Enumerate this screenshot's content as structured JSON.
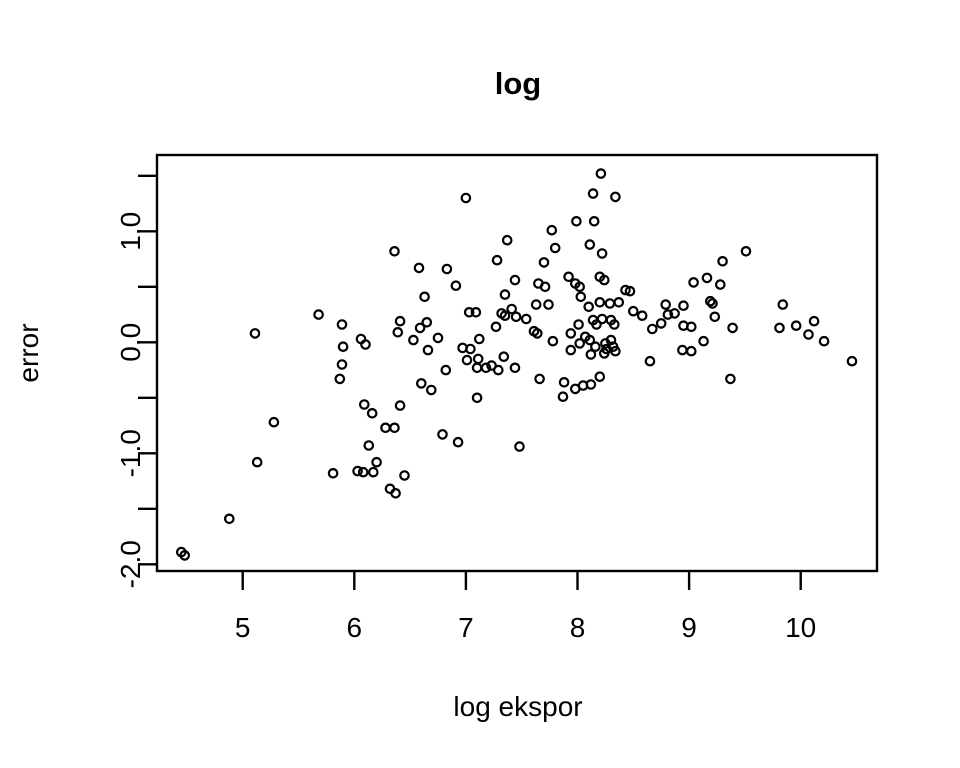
{
  "title": "log",
  "plot": {
    "background": "#ffffff",
    "stroke_color": "#000000",
    "marker": "open-circle"
  },
  "x_axis": {
    "label": "log ekspor",
    "ticks": [
      5,
      6,
      7,
      8,
      9,
      10
    ],
    "tick_labels": [
      "5",
      "6",
      "7",
      "8",
      "9",
      "10"
    ]
  },
  "y_axis": {
    "label": "error",
    "ticks": [
      -2.0,
      -1.5,
      -1.0,
      -0.5,
      0.0,
      0.5,
      1.0,
      1.5
    ],
    "labeled_ticks": [
      {
        "value": -2.0,
        "label": "-2.0"
      },
      {
        "value": -1.0,
        "label": "-1.0"
      },
      {
        "value": 0.0,
        "label": "0.0"
      },
      {
        "value": 1.0,
        "label": "1.0"
      }
    ]
  },
  "chart_data": {
    "type": "scatter",
    "title": "log",
    "xlabel": "log ekspor",
    "ylabel": "error",
    "xlim": [
      4.23,
      10.68
    ],
    "ylim": [
      -2.06,
      1.69
    ],
    "x_ticks": [
      5,
      6,
      7,
      8,
      9,
      10
    ],
    "y_ticks": [
      -2.0,
      -1.5,
      -1.0,
      -0.5,
      0.0,
      0.5,
      1.0,
      1.5
    ],
    "y_labeled_ticks": [
      -2.0,
      -1.0,
      0.0,
      1.0
    ],
    "grid": false,
    "legend": null,
    "marker": "open-circle",
    "color": "#000000",
    "points": [
      [
        4.45,
        -1.89
      ],
      [
        4.48,
        -1.92
      ],
      [
        4.88,
        -1.59
      ],
      [
        5.13,
        -1.08
      ],
      [
        5.28,
        -0.72
      ],
      [
        5.11,
        0.08
      ],
      [
        5.68,
        0.25
      ],
      [
        5.81,
        -1.18
      ],
      [
        6.03,
        -1.16
      ],
      [
        6.08,
        -1.17
      ],
      [
        6.17,
        -1.17
      ],
      [
        6.2,
        -1.08
      ],
      [
        6.13,
        -0.93
      ],
      [
        6.09,
        -0.56
      ],
      [
        6.16,
        -0.64
      ],
      [
        5.87,
        -0.33
      ],
      [
        5.89,
        -0.2
      ],
      [
        5.9,
        -0.04
      ],
      [
        5.89,
        0.16
      ],
      [
        6.06,
        0.03
      ],
      [
        6.1,
        -0.02
      ],
      [
        6.28,
        -0.77
      ],
      [
        6.36,
        -0.77
      ],
      [
        6.32,
        -1.32
      ],
      [
        6.37,
        -1.36
      ],
      [
        6.45,
        -1.2
      ],
      [
        6.41,
        -0.57
      ],
      [
        6.6,
        -0.37
      ],
      [
        6.69,
        -0.43
      ],
      [
        6.39,
        0.09
      ],
      [
        6.41,
        0.19
      ],
      [
        6.53,
        0.02
      ],
      [
        6.59,
        0.13
      ],
      [
        6.65,
        0.18
      ],
      [
        6.36,
        0.82
      ],
      [
        6.58,
        0.67
      ],
      [
        6.63,
        0.41
      ],
      [
        6.75,
        0.04
      ],
      [
        6.66,
        -0.07
      ],
      [
        6.79,
        -0.83
      ],
      [
        6.93,
        -0.9
      ],
      [
        6.82,
        -0.25
      ],
      [
        6.83,
        0.66
      ],
      [
        6.91,
        0.51
      ],
      [
        6.97,
        -0.05
      ],
      [
        7.04,
        -0.06
      ],
      [
        7.01,
        -0.16
      ],
      [
        7.11,
        -0.15
      ],
      [
        7.12,
        0.03
      ],
      [
        7.27,
        0.14
      ],
      [
        7.03,
        0.27
      ],
      [
        7.09,
        0.27
      ],
      [
        7.0,
        1.3
      ],
      [
        7.1,
        -0.5
      ],
      [
        7.1,
        -0.23
      ],
      [
        7.18,
        -0.23
      ],
      [
        7.23,
        -0.21
      ],
      [
        7.29,
        -0.25
      ],
      [
        7.34,
        -0.13
      ],
      [
        7.44,
        -0.23
      ],
      [
        7.48,
        -0.94
      ],
      [
        7.37,
        0.92
      ],
      [
        7.28,
        0.74
      ],
      [
        7.35,
        0.43
      ],
      [
        7.41,
        0.3
      ],
      [
        7.32,
        0.26
      ],
      [
        7.35,
        0.24
      ],
      [
        7.45,
        0.23
      ],
      [
        7.54,
        0.21
      ],
      [
        7.44,
        0.56
      ],
      [
        7.7,
        0.72
      ],
      [
        7.65,
        0.53
      ],
      [
        7.71,
        0.5
      ],
      [
        7.63,
        0.34
      ],
      [
        7.74,
        0.34
      ],
      [
        7.61,
        0.1
      ],
      [
        7.64,
        0.08
      ],
      [
        7.66,
        -0.33
      ],
      [
        7.88,
        -0.36
      ],
      [
        7.87,
        -0.49
      ],
      [
        7.98,
        -0.42
      ],
      [
        8.05,
        -0.39
      ],
      [
        8.12,
        -0.38
      ],
      [
        8.2,
        -0.31
      ],
      [
        7.78,
        0.01
      ],
      [
        7.94,
        -0.07
      ],
      [
        7.94,
        0.08
      ],
      [
        7.77,
        1.01
      ],
      [
        7.99,
        1.09
      ],
      [
        8.15,
        1.09
      ],
      [
        7.8,
        0.85
      ],
      [
        8.11,
        0.88
      ],
      [
        8.22,
        0.8
      ],
      [
        7.92,
        0.59
      ],
      [
        7.98,
        0.53
      ],
      [
        8.02,
        0.5
      ],
      [
        8.03,
        0.41
      ],
      [
        8.2,
        0.59
      ],
      [
        8.24,
        0.56
      ],
      [
        8.21,
        1.52
      ],
      [
        8.14,
        1.34
      ],
      [
        8.34,
        1.31
      ],
      [
        8.2,
        0.36
      ],
      [
        8.1,
        0.32
      ],
      [
        8.29,
        0.35
      ],
      [
        8.37,
        0.36
      ],
      [
        8.5,
        0.28
      ],
      [
        8.58,
        0.24
      ],
      [
        8.43,
        0.47
      ],
      [
        8.47,
        0.46
      ],
      [
        8.01,
        0.16
      ],
      [
        8.14,
        0.2
      ],
      [
        8.22,
        0.21
      ],
      [
        8.3,
        0.2
      ],
      [
        8.17,
        0.16
      ],
      [
        8.33,
        0.16
      ],
      [
        8.07,
        0.05
      ],
      [
        8.11,
        0.02
      ],
      [
        8.02,
        -0.01
      ],
      [
        8.16,
        -0.04
      ],
      [
        8.25,
        -0.01
      ],
      [
        8.26,
        -0.06
      ],
      [
        8.3,
        0.02
      ],
      [
        8.32,
        -0.04
      ],
      [
        8.34,
        -0.08
      ],
      [
        8.24,
        -0.1
      ],
      [
        8.12,
        -0.11
      ],
      [
        8.65,
        -0.17
      ],
      [
        8.67,
        0.12
      ],
      [
        8.79,
        0.34
      ],
      [
        8.95,
        0.33
      ],
      [
        8.87,
        0.26
      ],
      [
        8.81,
        0.25
      ],
      [
        8.75,
        0.17
      ],
      [
        8.95,
        0.15
      ],
      [
        9.02,
        0.14
      ],
      [
        8.94,
        -0.07
      ],
      [
        9.02,
        -0.08
      ],
      [
        9.04,
        0.54
      ],
      [
        9.16,
        0.58
      ],
      [
        9.28,
        0.52
      ],
      [
        9.19,
        0.37
      ],
      [
        9.21,
        0.35
      ],
      [
        9.23,
        0.23
      ],
      [
        9.39,
        0.13
      ],
      [
        9.13,
        0.01
      ],
      [
        9.3,
        0.73
      ],
      [
        9.51,
        0.82
      ],
      [
        9.37,
        -0.33
      ],
      [
        9.84,
        0.34
      ],
      [
        9.81,
        0.13
      ],
      [
        9.96,
        0.15
      ],
      [
        10.12,
        0.19
      ],
      [
        10.07,
        0.07
      ],
      [
        10.21,
        0.01
      ],
      [
        10.46,
        -0.17
      ]
    ]
  }
}
